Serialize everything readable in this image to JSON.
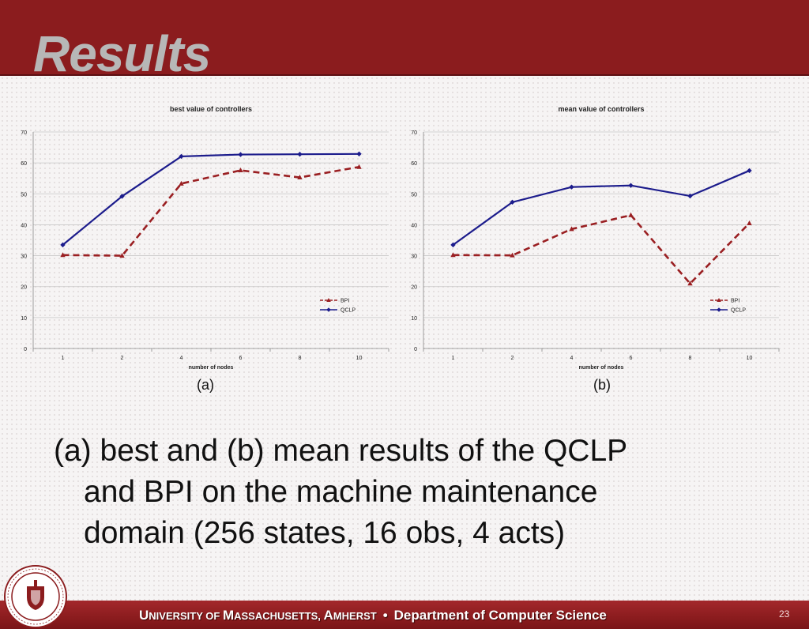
{
  "slide": {
    "title": "Results",
    "caption_a": "(a)",
    "caption_b": "(b)",
    "body_lines": [
      "(a) best and (b) mean results of the QCLP",
      "and BPI on the machine maintenance",
      "domain (256 states, 16 obs, 4 acts)"
    ],
    "footer": {
      "u_initial": "U",
      "u_rest": "NIVERSITY OF ",
      "m_initial": "M",
      "m_rest": "ASSACHUSETTS, ",
      "a_initial": "A",
      "a_rest": "MHERST",
      "separator": "•",
      "department": "Department of Computer Science"
    },
    "page_number": "23"
  },
  "colors": {
    "header": "#8b1c1e",
    "bpi": "#9a1f22",
    "qclp": "#1c1c8c"
  },
  "chart_data": [
    {
      "type": "line",
      "title": "best value of controllers",
      "xlabel": "number of nodes",
      "ylabel": "",
      "categories": [
        "1",
        "2",
        "4",
        "6",
        "8",
        "10"
      ],
      "ylim": [
        0,
        70
      ],
      "yticks": [
        "0",
        "10",
        "20",
        "30",
        "40",
        "50",
        "60",
        "70"
      ],
      "grid": true,
      "legend": "right",
      "series": [
        {
          "name": "BPI",
          "values": [
            30.2,
            30.0,
            53.3,
            57.6,
            55.3,
            58.7
          ],
          "style": "dashed",
          "marker": "triangle"
        },
        {
          "name": "QCLP",
          "values": [
            33.5,
            49.2,
            62.1,
            62.7,
            62.8,
            62.9
          ],
          "style": "solid",
          "marker": "diamond"
        }
      ]
    },
    {
      "type": "line",
      "title": "mean value of controllers",
      "xlabel": "number of nodes",
      "ylabel": "",
      "categories": [
        "1",
        "2",
        "4",
        "6",
        "8",
        "10"
      ],
      "ylim": [
        0,
        70
      ],
      "yticks": [
        "0",
        "10",
        "20",
        "30",
        "40",
        "50",
        "60",
        "70"
      ],
      "grid": true,
      "legend": "right",
      "series": [
        {
          "name": "BPI",
          "values": [
            30.2,
            30.1,
            38.6,
            43.1,
            21.0,
            40.5
          ],
          "style": "dashed",
          "marker": "triangle"
        },
        {
          "name": "QCLP",
          "values": [
            33.5,
            47.3,
            52.2,
            52.7,
            49.3,
            57.5
          ],
          "style": "solid",
          "marker": "diamond"
        }
      ]
    }
  ]
}
